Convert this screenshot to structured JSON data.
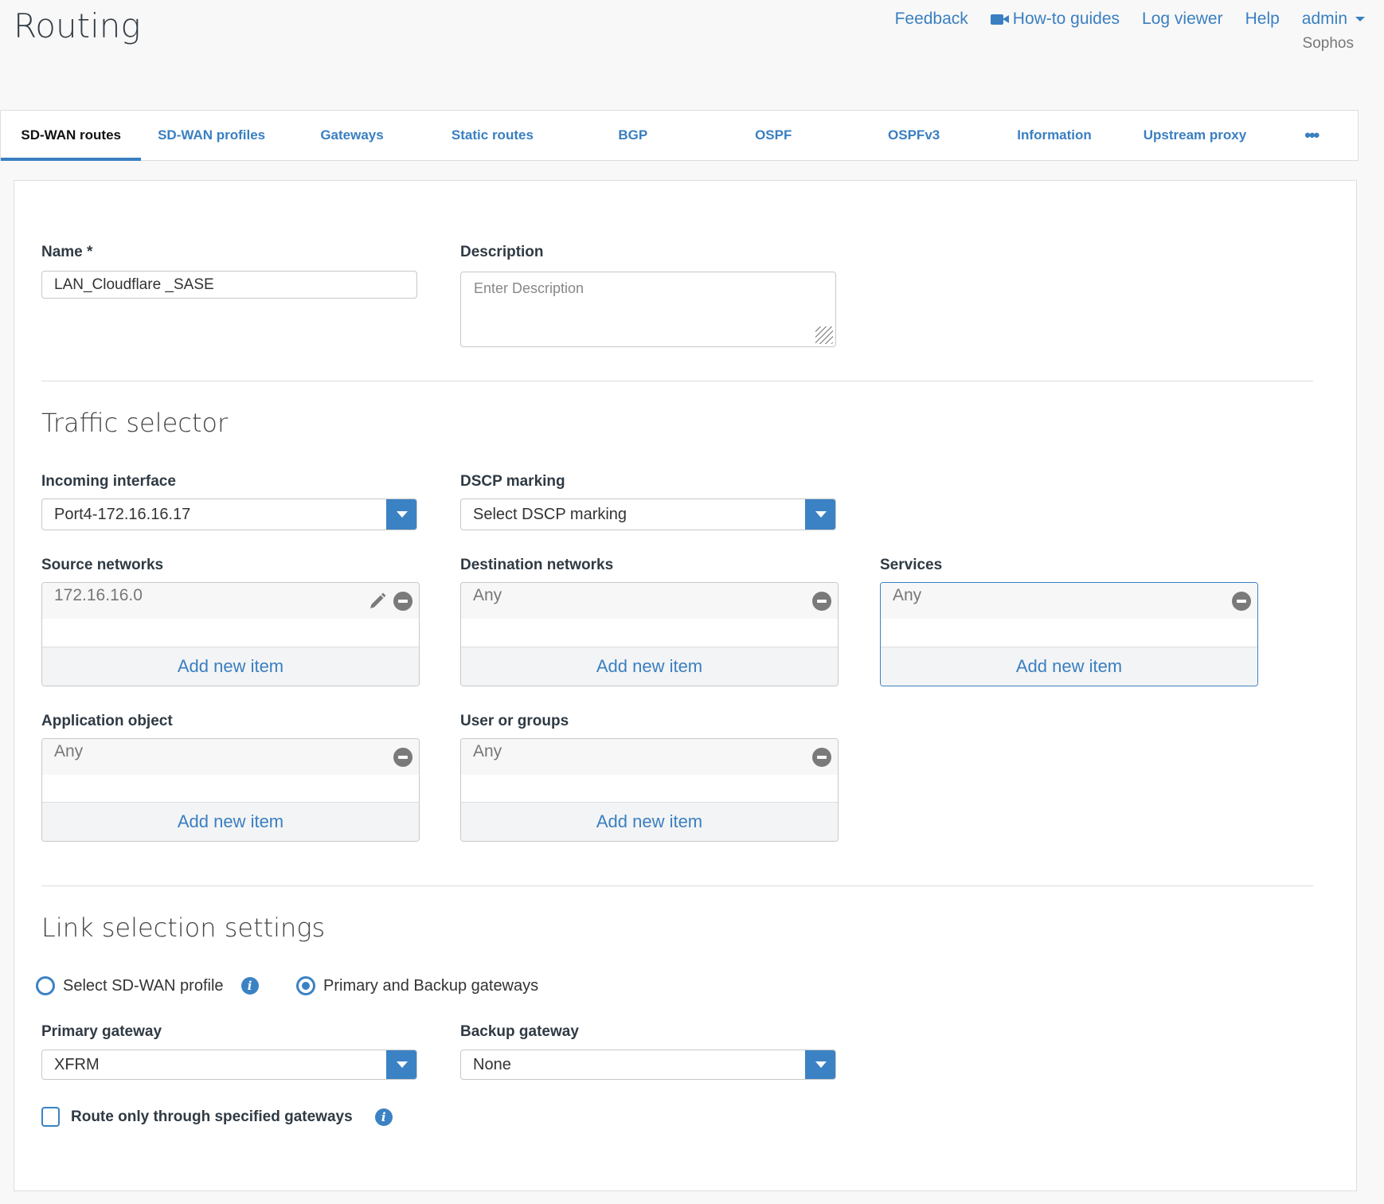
{
  "header": {
    "title": "Routing",
    "links": [
      "Feedback",
      "How-to guides",
      "Log viewer",
      "Help"
    ],
    "user": "admin",
    "org": "Sophos"
  },
  "tabs": [
    "SD-WAN routes",
    "SD-WAN profiles",
    "Gateways",
    "Static routes",
    "BGP",
    "OSPF",
    "OSPFv3",
    "Information",
    "Upstream proxy"
  ],
  "tabs_more": "•••",
  "form": {
    "name_label": "Name *",
    "name_value": "LAN_Cloudflare _SASE",
    "description_label": "Description",
    "description_placeholder": "Enter Description",
    "traffic_title": "Traffic selector",
    "incoming_label": "Incoming interface",
    "incoming_value": "Port4-172.16.16.17",
    "dscp_label": "DSCP marking",
    "dscp_value": "Select DSCP marking",
    "source_label": "Source networks",
    "source_item": "172.16.16.0",
    "dest_label": "Destination networks",
    "dest_item": "Any",
    "services_label": "Services",
    "services_item": "Any",
    "app_label": "Application object",
    "app_item": "Any",
    "users_label": "User or groups",
    "users_item": "Any",
    "add_new": "Add new item",
    "link_title": "Link selection settings",
    "radio_profile": "Select SD-WAN profile",
    "radio_gateways": "Primary and Backup gateways",
    "selected_radio": "gateways",
    "primary_label": "Primary gateway",
    "primary_value": "XFRM",
    "backup_label": "Backup gateway",
    "backup_value": "None",
    "route_only_label": "Route only through specified gateways",
    "route_only_checked": false,
    "info": "i"
  },
  "colors": {
    "accent": "#3b82c4",
    "link": "#3a7fc1"
  }
}
